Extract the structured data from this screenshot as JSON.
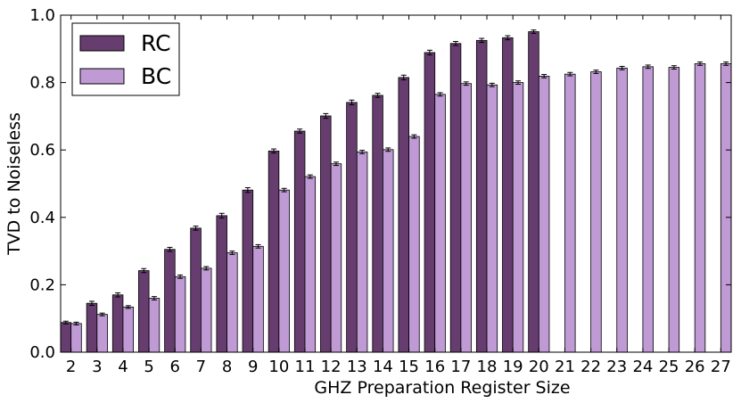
{
  "chart_data": {
    "type": "bar",
    "title": "",
    "xlabel": "GHZ Preparation Register Size",
    "ylabel": "TVD to Noiseless",
    "ylim": [
      0.0,
      1.0
    ],
    "yticks": [
      "0.0",
      "0.2",
      "0.4",
      "0.6",
      "0.8",
      "1.0"
    ],
    "categories": [
      "2",
      "3",
      "4",
      "5",
      "6",
      "7",
      "8",
      "9",
      "10",
      "11",
      "12",
      "13",
      "14",
      "15",
      "16",
      "17",
      "18",
      "19",
      "20",
      "21",
      "22",
      "23",
      "24",
      "25",
      "26",
      "27"
    ],
    "legend_position": "top-left",
    "grid": false,
    "series": [
      {
        "name": "RC",
        "color": "#663d6e",
        "values": [
          0.088,
          0.145,
          0.17,
          0.242,
          0.305,
          0.368,
          0.405,
          0.481,
          0.597,
          0.656,
          0.701,
          0.741,
          0.762,
          0.815,
          0.889,
          0.916,
          0.925,
          0.933,
          0.951,
          null,
          null,
          null,
          null,
          null,
          null,
          null
        ],
        "errors": [
          0.004,
          0.006,
          0.006,
          0.006,
          0.006,
          0.006,
          0.007,
          0.007,
          0.006,
          0.006,
          0.007,
          0.007,
          0.006,
          0.007,
          0.007,
          0.006,
          0.006,
          0.006,
          0.005,
          null,
          null,
          null,
          null,
          null,
          null,
          null
        ]
      },
      {
        "name": "BC",
        "color": "#bf9ad4",
        "values": [
          0.085,
          0.112,
          0.134,
          0.16,
          0.224,
          0.249,
          0.295,
          0.314,
          0.481,
          0.521,
          0.559,
          0.594,
          0.601,
          0.64,
          0.765,
          0.797,
          0.793,
          0.8,
          0.819,
          0.825,
          0.832,
          0.843,
          0.847,
          0.845,
          0.856,
          0.856
        ],
        "errors": [
          0.004,
          0.004,
          0.004,
          0.005,
          0.005,
          0.005,
          0.005,
          0.005,
          0.005,
          0.005,
          0.005,
          0.005,
          0.005,
          0.005,
          0.005,
          0.005,
          0.005,
          0.005,
          0.005,
          0.005,
          0.005,
          0.005,
          0.005,
          0.005,
          0.005,
          0.005
        ]
      }
    ]
  }
}
